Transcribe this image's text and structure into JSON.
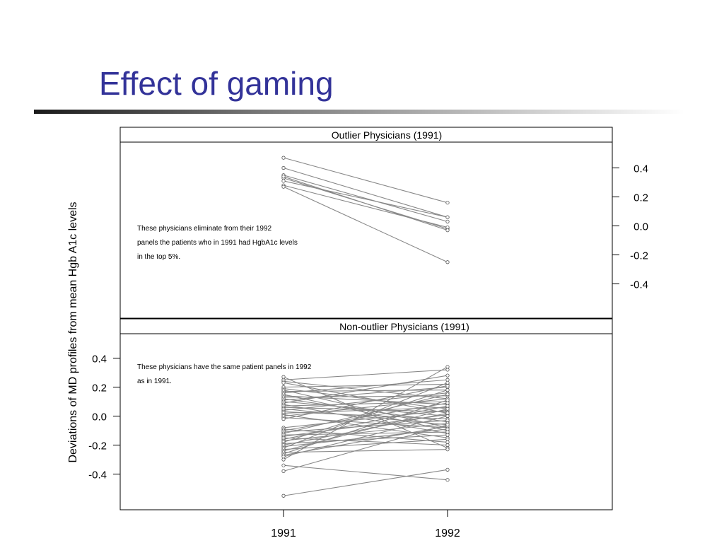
{
  "slide": {
    "title": "Effect of gaming",
    "title_color": "#333399"
  },
  "chart_data": {
    "type": "line",
    "ylabel": "Deviations of MD profiles from mean Hgb A1c levels",
    "x_ticks": [
      "1991",
      "1992"
    ],
    "y_ticks": [
      "0.4",
      "0.2",
      "0.0",
      "-0.2",
      "-0.4"
    ],
    "y_tick_values": [
      0.4,
      0.2,
      0.0,
      -0.2,
      -0.4
    ],
    "line_color": "#888888",
    "panels": [
      {
        "id": "top",
        "strip_label": "Outlier Physicians (1991)",
        "y_axis_side": "right",
        "annotation": [
          "These physicians eliminate from their 1992",
          "panels the patients who in 1991 had HgbA1c levels",
          "in the top 5%."
        ],
        "profiles": [
          [
            0.47,
            0.16
          ],
          [
            0.4,
            0.06
          ],
          [
            0.35,
            0.03
          ],
          [
            0.33,
            -0.02
          ],
          [
            0.34,
            -0.03
          ],
          [
            0.31,
            0.06
          ],
          [
            0.28,
            -0.01
          ],
          [
            0.27,
            -0.25
          ]
        ]
      },
      {
        "id": "bottom",
        "strip_label": "Non-outlier Physicians (1991)",
        "y_axis_side": "left",
        "annotation": [
          "These physicians have the same patient panels in 1992",
          "as in 1991."
        ],
        "profiles": [
          [
            0.27,
            -0.22
          ],
          [
            0.25,
            0.32
          ],
          [
            0.24,
            0.12
          ],
          [
            0.23,
            0.02
          ],
          [
            0.2,
            0.22
          ],
          [
            0.19,
            0.05
          ],
          [
            0.18,
            -0.08
          ],
          [
            0.17,
            0.18
          ],
          [
            0.16,
            0.25
          ],
          [
            0.15,
            -0.1
          ],
          [
            0.14,
            0.08
          ],
          [
            0.13,
            0.14
          ],
          [
            0.12,
            -0.04
          ],
          [
            0.11,
            0.2
          ],
          [
            0.1,
            0.0
          ],
          [
            0.09,
            0.28
          ],
          [
            0.08,
            -0.12
          ],
          [
            0.07,
            0.1
          ],
          [
            0.06,
            0.03
          ],
          [
            0.05,
            -0.06
          ],
          [
            0.04,
            0.16
          ],
          [
            0.03,
            -0.02
          ],
          [
            0.02,
            0.06
          ],
          [
            0.01,
            -0.15
          ],
          [
            0.0,
            0.12
          ],
          [
            -0.01,
            -0.08
          ],
          [
            -0.02,
            0.21
          ],
          [
            -0.08,
            0.04
          ],
          [
            -0.09,
            -0.18
          ],
          [
            -0.1,
            0.09
          ],
          [
            -0.11,
            -0.03
          ],
          [
            -0.12,
            0.15
          ],
          [
            -0.13,
            -0.11
          ],
          [
            -0.14,
            0.01
          ],
          [
            -0.15,
            -0.2
          ],
          [
            -0.16,
            0.07
          ],
          [
            -0.17,
            -0.05
          ],
          [
            -0.18,
            0.18
          ],
          [
            -0.19,
            -0.13
          ],
          [
            -0.2,
            0.02
          ],
          [
            -0.21,
            -0.09
          ],
          [
            -0.22,
            0.23
          ],
          [
            -0.23,
            -0.16
          ],
          [
            -0.24,
            0.05
          ],
          [
            -0.25,
            -0.23
          ],
          [
            -0.26,
            0.11
          ],
          [
            -0.27,
            -0.07
          ],
          [
            -0.28,
            0.0
          ],
          [
            -0.3,
            0.34
          ],
          [
            -0.34,
            -0.44
          ],
          [
            -0.38,
            -0.06
          ],
          [
            -0.55,
            -0.37
          ]
        ]
      }
    ]
  }
}
